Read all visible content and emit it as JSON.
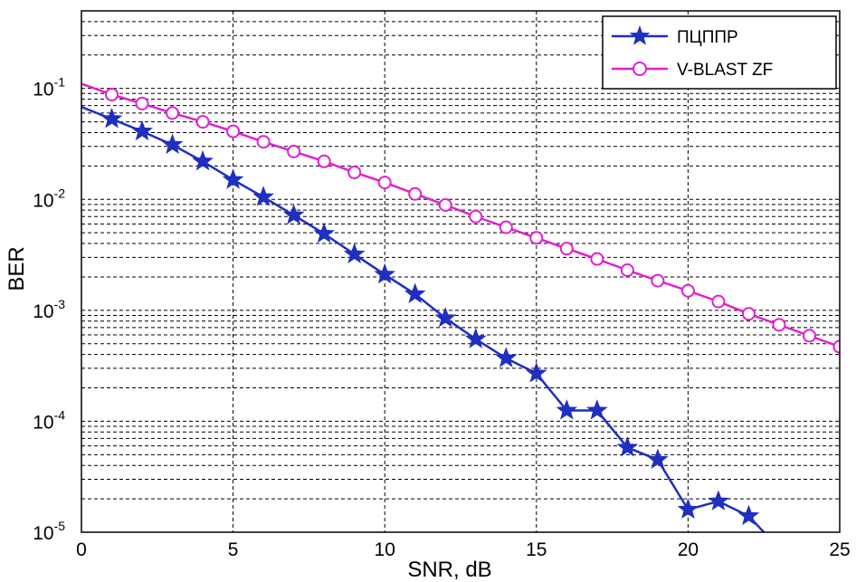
{
  "chart_data": {
    "type": "line",
    "title": "",
    "xlabel": "SNR, dB",
    "ylabel": "BER",
    "xlim": [
      0,
      25
    ],
    "ylim": [
      1e-05,
      0.5
    ],
    "yscale": "log",
    "grid": true,
    "legend_position": "top-right",
    "x_ticks": [
      "0",
      "5",
      "10",
      "15",
      "20",
      "25"
    ],
    "y_ticks": [
      {
        "base": "10",
        "exp": "-1",
        "value": 0.1
      },
      {
        "base": "10",
        "exp": "-2",
        "value": 0.01
      },
      {
        "base": "10",
        "exp": "-3",
        "value": 0.001
      },
      {
        "base": "10",
        "exp": "-4",
        "value": 0.0001
      },
      {
        "base": "10",
        "exp": "-5",
        "value": 1e-05
      }
    ],
    "series": [
      {
        "name": "ПЦППР",
        "color": "#1f2fbf",
        "marker": "star",
        "x": [
          0,
          1,
          2,
          3,
          4,
          5,
          6,
          7,
          8,
          9,
          10,
          11,
          12,
          13,
          14,
          15,
          16,
          17,
          18,
          19,
          20,
          21,
          22,
          22.5
        ],
        "y": [
          0.068,
          0.053,
          0.041,
          0.031,
          0.022,
          0.015,
          0.0105,
          0.0072,
          0.0049,
          0.0032,
          0.0021,
          0.0014,
          0.00085,
          0.00055,
          0.00037,
          0.00027,
          0.000125,
          0.000125,
          5.8e-05,
          4.5e-05,
          1.6e-05,
          1.9e-05,
          1.4e-05,
          1e-05
        ],
        "marker_x": [
          1,
          2,
          3,
          4,
          5,
          6,
          7,
          8,
          9,
          10,
          11,
          12,
          13,
          14,
          15,
          16,
          17,
          18,
          19,
          20,
          21,
          22
        ]
      },
      {
        "name": "V-BLAST ZF",
        "color": "#e020d0",
        "marker": "circle",
        "x": [
          0,
          1,
          2,
          3,
          4,
          5,
          6,
          7,
          8,
          9,
          10,
          11,
          12,
          13,
          14,
          15,
          16,
          17,
          18,
          19,
          20,
          21,
          22,
          23,
          24,
          25
        ],
        "y": [
          0.11,
          0.088,
          0.073,
          0.06,
          0.05,
          0.041,
          0.033,
          0.027,
          0.022,
          0.0175,
          0.0142,
          0.0112,
          0.0089,
          0.007,
          0.0056,
          0.0045,
          0.0036,
          0.0029,
          0.0023,
          0.00185,
          0.0015,
          0.0012,
          0.00093,
          0.00074,
          0.00059,
          0.00047
        ],
        "marker_x": [
          1,
          2,
          3,
          4,
          5,
          6,
          7,
          8,
          9,
          10,
          11,
          12,
          13,
          14,
          15,
          16,
          17,
          18,
          19,
          20,
          21,
          22,
          23,
          24,
          25
        ]
      }
    ]
  }
}
